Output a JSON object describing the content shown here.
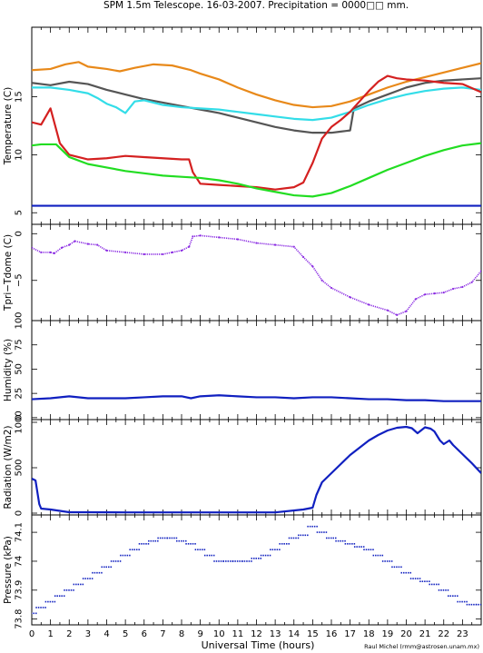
{
  "header": {
    "title": "SPM 1.5m Telescope. 16-03-2007. Precipitation = 0000□□ mm."
  },
  "footer": {
    "xlabel": "Universal Time (hours)",
    "credit": "Raul Michel (rmm@astrosen.unam.mx)"
  },
  "colors": {
    "orange": "#e8891a",
    "gray": "#555555",
    "cyan": "#33dde8",
    "red": "#d42020",
    "green": "#22dd22",
    "blue": "#1020c0",
    "purple": "#8a2be2"
  },
  "chart_data": [
    {
      "type": "line",
      "ylabel": "Temperature (C)",
      "xlim": [
        0,
        24
      ],
      "ylim": [
        4,
        21
      ],
      "yticks": [
        5,
        10,
        15
      ],
      "series": [
        {
          "color_key": "orange",
          "x": [
            0,
            1,
            1.8,
            2.5,
            3,
            4,
            4.7,
            5.5,
            6.5,
            7.5,
            8.5,
            9,
            10,
            11,
            12,
            13,
            14,
            15,
            16,
            17,
            18,
            19,
            20,
            21,
            22,
            23,
            24
          ],
          "y": [
            17.3,
            17.4,
            17.8,
            18.0,
            17.6,
            17.4,
            17.2,
            17.5,
            17.8,
            17.7,
            17.3,
            17.0,
            16.5,
            15.8,
            15.2,
            14.7,
            14.3,
            14.1,
            14.2,
            14.6,
            15.2,
            15.8,
            16.3,
            16.7,
            17.1,
            17.5,
            17.9
          ]
        },
        {
          "color_key": "gray",
          "x": [
            0,
            1,
            2,
            3,
            4,
            5,
            6,
            7,
            8,
            9,
            10,
            11,
            12,
            13,
            14,
            15,
            16,
            16.5,
            17,
            17.2,
            18,
            19,
            20,
            21,
            22,
            23,
            24
          ],
          "y": [
            16.2,
            16.0,
            16.3,
            16.1,
            15.6,
            15.2,
            14.8,
            14.5,
            14.2,
            13.9,
            13.6,
            13.2,
            12.8,
            12.4,
            12.1,
            11.9,
            11.9,
            12.0,
            12.1,
            14.0,
            14.6,
            15.2,
            15.8,
            16.2,
            16.4,
            16.5,
            16.6
          ]
        },
        {
          "color_key": "cyan",
          "x": [
            0,
            1,
            2,
            3,
            3.5,
            4,
            4.5,
            5,
            5.5,
            6,
            7,
            8,
            9,
            10,
            11,
            12,
            13,
            14,
            15,
            16,
            17,
            18,
            19,
            20,
            21,
            22,
            23,
            24
          ],
          "y": [
            15.8,
            15.8,
            15.6,
            15.3,
            14.9,
            14.4,
            14.1,
            13.6,
            14.6,
            14.7,
            14.3,
            14.1,
            14.0,
            13.9,
            13.7,
            13.5,
            13.3,
            13.1,
            13.0,
            13.2,
            13.7,
            14.3,
            14.8,
            15.2,
            15.5,
            15.7,
            15.8,
            15.6
          ]
        },
        {
          "color_key": "red",
          "x": [
            0,
            0.5,
            1,
            1.5,
            2,
            3,
            4,
            5,
            6,
            7,
            8,
            8.4,
            8.6,
            9,
            10,
            11,
            12,
            13,
            14,
            14.5,
            15,
            15.5,
            16,
            16.5,
            17,
            17.5,
            18,
            18.5,
            19,
            19.5,
            20,
            21,
            22,
            23,
            24
          ],
          "y": [
            12.8,
            12.6,
            14.0,
            11.0,
            10.0,
            9.6,
            9.7,
            9.9,
            9.8,
            9.7,
            9.6,
            9.6,
            8.5,
            7.5,
            7.4,
            7.3,
            7.2,
            7.0,
            7.2,
            7.6,
            9.3,
            11.4,
            12.4,
            13.0,
            13.7,
            14.6,
            15.5,
            16.3,
            16.8,
            16.6,
            16.5,
            16.4,
            16.2,
            16.1,
            15.4
          ]
        },
        {
          "color_key": "green",
          "x": [
            0,
            0.5,
            1,
            1.3,
            2,
            3,
            4,
            5,
            6,
            7,
            8,
            9,
            10,
            11,
            12,
            13,
            14,
            15,
            16,
            17,
            18,
            19,
            20,
            21,
            22,
            23,
            24
          ],
          "y": [
            10.8,
            10.9,
            10.9,
            10.9,
            9.8,
            9.2,
            8.9,
            8.6,
            8.4,
            8.2,
            8.1,
            8.0,
            7.8,
            7.5,
            7.1,
            6.8,
            6.5,
            6.4,
            6.7,
            7.3,
            8.0,
            8.7,
            9.3,
            9.9,
            10.4,
            10.8,
            11.0
          ]
        },
        {
          "color_key": "blue",
          "x": [
            0,
            24
          ],
          "y": [
            5.6,
            5.6
          ]
        }
      ]
    },
    {
      "type": "scatter",
      "ylabel": "Tpri−Tdome (C)",
      "xlim": [
        0,
        24
      ],
      "ylim": [
        -9.3,
        1.0
      ],
      "yticks": [
        0,
        -5
      ],
      "ytick_labels": [
        "0",
        "−5"
      ],
      "series": [
        {
          "color_key": "purple",
          "x": [
            0,
            0.5,
            1,
            1.2,
            1.6,
            2,
            2.3,
            3,
            3.5,
            4,
            5,
            6,
            7,
            7.5,
            8,
            8.4,
            8.6,
            9,
            10,
            11,
            12,
            13,
            14,
            14.5,
            15,
            15.5,
            16,
            17,
            18,
            19,
            19.5,
            20,
            20.5,
            21,
            21.5,
            22,
            22.5,
            23,
            23.5,
            24
          ],
          "y": [
            -1.5,
            -2.0,
            -2.0,
            -2.1,
            -1.5,
            -1.2,
            -0.8,
            -1.1,
            -1.2,
            -1.8,
            -2.0,
            -2.2,
            -2.2,
            -2.0,
            -1.8,
            -1.4,
            -0.3,
            -0.2,
            -0.4,
            -0.6,
            -1.0,
            -1.2,
            -1.4,
            -2.5,
            -3.5,
            -5.0,
            -5.8,
            -6.8,
            -7.6,
            -8.2,
            -8.7,
            -8.3,
            -7.0,
            -6.5,
            -6.4,
            -6.3,
            -5.9,
            -5.7,
            -5.2,
            -4.0
          ]
        }
      ]
    },
    {
      "type": "line",
      "ylabel": "Humidity (%)",
      "xlim": [
        0,
        24
      ],
      "ylim": [
        -2,
        100
      ],
      "yticks": [
        0,
        25,
        50,
        75,
        100
      ],
      "series": [
        {
          "color_key": "blue",
          "x": [
            0,
            1,
            2,
            3,
            4,
            5,
            6,
            7,
            8,
            8.5,
            9,
            10,
            11,
            12,
            13,
            14,
            15,
            16,
            17,
            18,
            19,
            20,
            21,
            22,
            23,
            24
          ],
          "y": [
            19,
            20,
            22,
            20,
            20,
            20,
            21,
            22,
            22,
            20,
            22,
            23,
            22,
            21,
            21,
            20,
            21,
            21,
            20,
            19,
            19,
            18,
            18,
            17,
            17,
            17
          ]
        }
      ]
    },
    {
      "type": "line",
      "ylabel": "Radiation (W/m2)",
      "xlim": [
        0,
        24
      ],
      "ylim": [
        -20,
        1030
      ],
      "yticks": [
        0,
        500,
        1000
      ],
      "series": [
        {
          "color_key": "blue",
          "x": [
            0,
            0.2,
            0.4,
            0.5,
            1,
            2,
            3,
            5,
            7,
            9,
            11,
            13,
            14.5,
            15,
            15.2,
            15.5,
            16,
            16.5,
            17,
            17.5,
            18,
            18.5,
            19,
            19.5,
            20,
            20.3,
            20.6,
            21,
            21.3,
            21.5,
            21.8,
            22,
            22.3,
            22.5,
            23,
            23.5,
            24
          ],
          "y": [
            380,
            360,
            100,
            50,
            40,
            10,
            10,
            8,
            8,
            8,
            8,
            8,
            40,
            60,
            200,
            340,
            440,
            540,
            640,
            720,
            800,
            860,
            910,
            940,
            950,
            935,
            880,
            945,
            930,
            900,
            800,
            760,
            800,
            750,
            650,
            550,
            440
          ]
        }
      ]
    },
    {
      "type": "scatter",
      "ylabel": "Pressure (kPa)",
      "xlim": [
        0,
        24
      ],
      "ylim": [
        73.78,
        74.16
      ],
      "yticks": [
        73.8,
        73.9,
        74,
        74.1
      ],
      "ytick_labels": [
        "73.8",
        "73.9",
        "74",
        "74.1"
      ],
      "series": [
        {
          "color_key": "blue",
          "x": [
            0,
            0.5,
            1,
            1.5,
            2,
            2.5,
            3,
            3.5,
            4,
            4.5,
            5,
            5.5,
            6,
            6.5,
            7,
            7.5,
            8,
            8.5,
            9,
            9.5,
            10,
            10.5,
            11,
            11.5,
            12,
            12.5,
            13,
            13.5,
            14,
            14.5,
            15,
            15.5,
            16,
            16.5,
            17,
            17.5,
            18,
            18.5,
            19,
            19.5,
            20,
            20.5,
            21,
            21.5,
            22,
            22.5,
            23,
            23.5,
            24
          ],
          "y": [
            73.82,
            73.84,
            73.86,
            73.88,
            73.9,
            73.92,
            73.94,
            73.96,
            73.98,
            74.0,
            74.02,
            74.04,
            74.06,
            74.07,
            74.08,
            74.08,
            74.07,
            74.06,
            74.04,
            74.02,
            74.0,
            74.0,
            74.0,
            74.0,
            74.01,
            74.02,
            74.04,
            74.06,
            74.08,
            74.09,
            74.12,
            74.1,
            74.08,
            74.07,
            74.06,
            74.05,
            74.04,
            74.02,
            74.0,
            73.98,
            73.96,
            73.94,
            73.93,
            73.92,
            73.9,
            73.88,
            73.86,
            73.85,
            73.85
          ]
        }
      ]
    }
  ],
  "x_axis": {
    "ticks": [
      "0",
      "1",
      "2",
      "3",
      "4",
      "5",
      "6",
      "7",
      "8",
      "9",
      "10",
      "11",
      "12",
      "13",
      "14",
      "15",
      "16",
      "17",
      "18",
      "19",
      "20",
      "21",
      "22",
      "23"
    ]
  }
}
